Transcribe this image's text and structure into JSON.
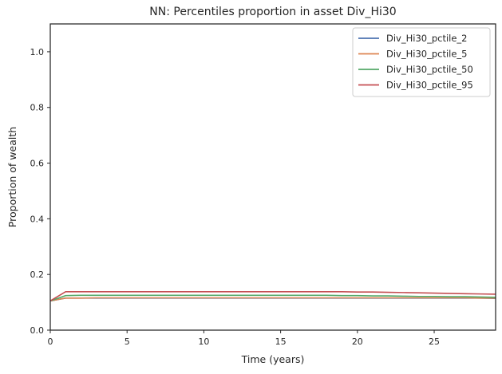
{
  "chart_data": {
    "type": "line",
    "title": "NN: Percentiles proportion in asset Div_Hi30",
    "xlabel": "Time (years)",
    "ylabel": "Proportion of wealth",
    "xlim": [
      0,
      29
    ],
    "ylim": [
      0.0,
      1.1
    ],
    "xticks": [
      0,
      5,
      10,
      15,
      20,
      25
    ],
    "yticks": [
      0.0,
      0.2,
      0.4,
      0.6,
      0.8,
      1.0
    ],
    "xtick_labels": [
      "0",
      "5",
      "10",
      "15",
      "20",
      "25"
    ],
    "ytick_labels": [
      "0.0",
      "0.2",
      "0.4",
      "0.6",
      "0.8",
      "1.0"
    ],
    "grid": false,
    "legend_position": "top-right",
    "x": [
      0,
      1,
      2,
      3,
      4,
      5,
      6,
      7,
      8,
      9,
      10,
      11,
      12,
      13,
      14,
      15,
      16,
      17,
      18,
      19,
      20,
      21,
      22,
      23,
      24,
      25,
      26,
      27,
      28,
      29
    ],
    "series": [
      {
        "name": "Div_Hi30_pctile_2",
        "color": "#4c72b0",
        "values": [
          0.105,
          0.115,
          0.115,
          0.115,
          0.115,
          0.115,
          0.115,
          0.115,
          0.115,
          0.115,
          0.115,
          0.115,
          0.115,
          0.115,
          0.115,
          0.115,
          0.115,
          0.115,
          0.115,
          0.115,
          0.115,
          0.115,
          0.115,
          0.115,
          0.115,
          0.115,
          0.115,
          0.115,
          0.115,
          0.114
        ]
      },
      {
        "name": "Div_Hi30_pctile_5",
        "color": "#dd8452",
        "values": [
          0.105,
          0.115,
          0.115,
          0.116,
          0.116,
          0.116,
          0.116,
          0.116,
          0.116,
          0.116,
          0.116,
          0.116,
          0.116,
          0.116,
          0.116,
          0.116,
          0.116,
          0.116,
          0.116,
          0.116,
          0.116,
          0.116,
          0.116,
          0.116,
          0.116,
          0.116,
          0.116,
          0.116,
          0.115,
          0.115
        ]
      },
      {
        "name": "Div_Hi30_pctile_50",
        "color": "#55a868",
        "values": [
          0.105,
          0.124,
          0.125,
          0.125,
          0.125,
          0.125,
          0.125,
          0.125,
          0.125,
          0.125,
          0.125,
          0.125,
          0.125,
          0.125,
          0.125,
          0.125,
          0.125,
          0.125,
          0.125,
          0.124,
          0.124,
          0.123,
          0.123,
          0.122,
          0.121,
          0.121,
          0.12,
          0.12,
          0.119,
          0.118
        ]
      },
      {
        "name": "Div_Hi30_pctile_95",
        "color": "#c44e52",
        "values": [
          0.105,
          0.138,
          0.138,
          0.138,
          0.138,
          0.138,
          0.138,
          0.138,
          0.138,
          0.138,
          0.138,
          0.138,
          0.138,
          0.138,
          0.138,
          0.138,
          0.138,
          0.138,
          0.138,
          0.138,
          0.137,
          0.137,
          0.136,
          0.135,
          0.134,
          0.133,
          0.132,
          0.131,
          0.13,
          0.129
        ]
      }
    ]
  }
}
